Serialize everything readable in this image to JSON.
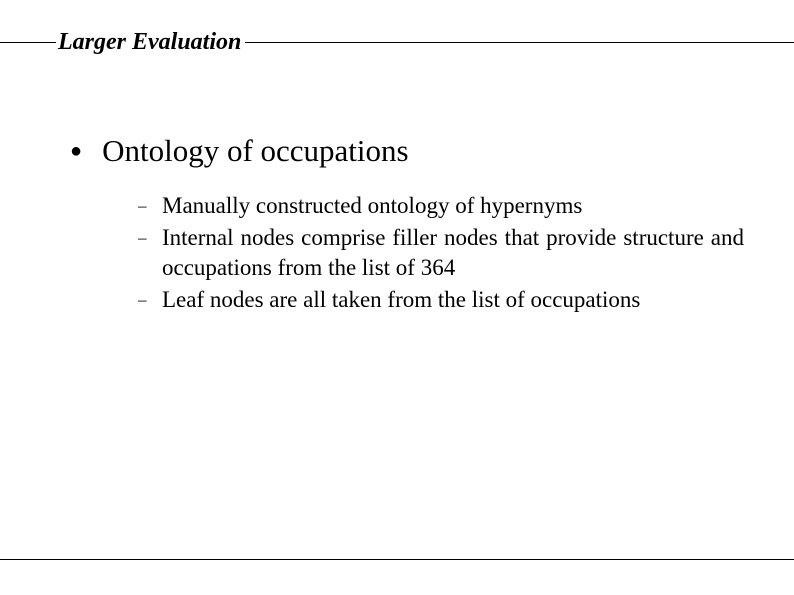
{
  "header": {
    "title": "Larger Evaluation"
  },
  "content": {
    "main_bullet": "Ontology of occupations",
    "sub_items": [
      "Manually constructed ontology of hypernyms",
      "Internal nodes comprise filler nodes that provide structure and occupations from the list of 364",
      "Leaf nodes are all taken from the list of occupations"
    ]
  },
  "style": {
    "background_color": "#ffffff",
    "text_color": "#000000",
    "line_color": "#000000",
    "header_fontsize": 24,
    "main_fontsize": 31,
    "sub_fontsize": 23
  }
}
